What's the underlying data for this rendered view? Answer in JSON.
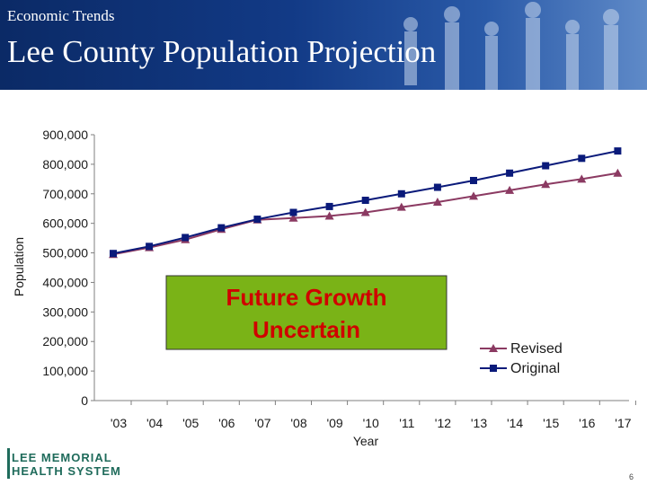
{
  "header": {
    "subtitle": "Economic Trends",
    "title": "Lee County Population Projection"
  },
  "chart_data": {
    "type": "line",
    "xlabel": "Year",
    "ylabel": "Population",
    "categories": [
      "'03",
      "'04",
      "'05",
      "'06",
      "'07",
      "'08",
      "'09",
      "'10",
      "'11",
      "'12",
      "'13",
      "'14",
      "'15",
      "'16",
      "'17"
    ],
    "ylim": [
      0,
      900000
    ],
    "yticks": [
      0,
      100000,
      200000,
      300000,
      400000,
      500000,
      600000,
      700000,
      800000,
      900000
    ],
    "ytick_labels": [
      "0",
      "100,000",
      "200,000",
      "300,000",
      "400,000",
      "500,000",
      "600,000",
      "700,000",
      "800,000",
      "900,000"
    ],
    "series": [
      {
        "name": "Revised",
        "marker": "triangle",
        "color": "#8b3a62",
        "values": [
          495000,
          518000,
          545000,
          580000,
          612000,
          618000,
          625000,
          637000,
          655000,
          672000,
          692000,
          712000,
          732000,
          750000,
          770000
        ]
      },
      {
        "name": "Original",
        "marker": "square",
        "color": "#0a1a7a",
        "values": [
          498000,
          522000,
          552000,
          585000,
          614000,
          637000,
          657000,
          678000,
          700000,
          722000,
          745000,
          770000,
          795000,
          820000,
          845000
        ]
      }
    ],
    "legend_position": "bottom-right",
    "grid": false,
    "annotation": {
      "text_line1": "Future Growth",
      "text_line2": "Uncertain",
      "fill": "#7ab317",
      "text_color": "#d00000"
    }
  },
  "footer": {
    "logo_line1": "LEE MEMORIAL",
    "logo_line2": "HEALTH SYSTEM",
    "page_number": "6"
  }
}
